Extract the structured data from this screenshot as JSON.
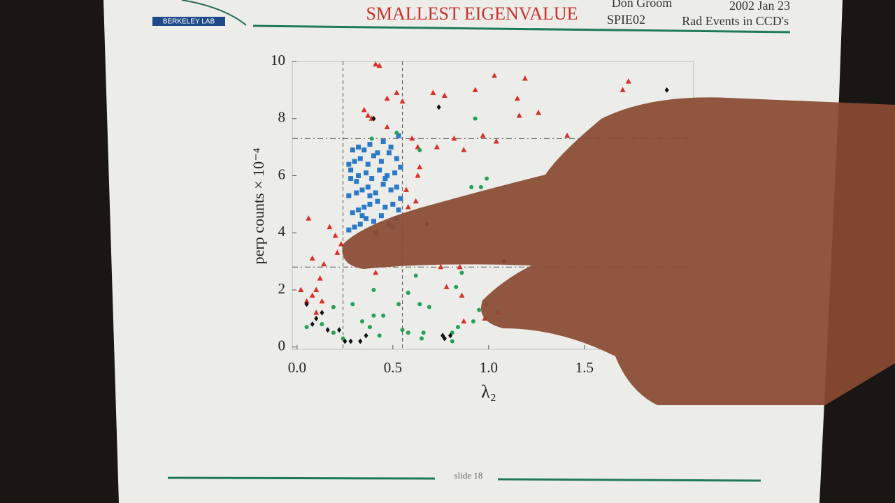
{
  "slide": {
    "logo": "BERKELEY LAB",
    "heading": "SMALLEST EIGENVALUE",
    "author": "Don Groom",
    "date": "2002 Jan 23",
    "venue": "SPIE02",
    "topic": "Rad Events in CCD's",
    "footer": "slide 18"
  },
  "chart_data": {
    "type": "scatter",
    "x_label": "λ₂",
    "y_label": "perp counts × 10⁻⁴",
    "xlim": [
      -0.025,
      2.07
    ],
    "ylim": [
      -0.08,
      10
    ],
    "xticks": [
      {
        "value": 0,
        "label": "0.0"
      },
      0.5,
      {
        "value": 1,
        "label": "1.0"
      },
      1.5
    ],
    "yticks": [
      0,
      2,
      4,
      6,
      8,
      10
    ],
    "x_cuts": [
      0.24,
      0.55
    ],
    "y_cuts": [
      7.3,
      2.8
    ],
    "series": [
      {
        "marker": "triangle",
        "color": "#d8302a",
        "x": [
          0.41,
          0.43,
          0.52,
          0.47,
          0.55,
          0.71,
          0.77,
          0.93,
          1.03,
          1.19,
          1.15,
          1.26,
          1.16,
          1.73,
          1.7,
          0.35,
          0.39,
          0.37,
          0.47,
          0.6,
          0.73,
          0.82,
          0.87,
          0.97,
          1.04,
          1.41,
          0.63,
          0.64,
          0.57,
          0.63,
          0.62,
          0.58,
          0.06,
          0.17,
          0.2,
          0.23,
          0.08,
          0.14,
          0.21,
          0.41,
          0.75,
          0.85,
          0.78,
          0.86,
          0.05,
          0.08,
          0.1,
          0.12,
          0.13,
          0.1,
          0.02,
          0.87,
          0.98,
          1.05
        ],
        "y": [
          9.9,
          9.85,
          8.9,
          8.7,
          8.6,
          8.9,
          8.8,
          9.0,
          9.5,
          9.4,
          8.7,
          8.2,
          8.1,
          9.3,
          9.0,
          8.3,
          8.0,
          8.1,
          7.7,
          7.3,
          7.0,
          7.3,
          6.9,
          7.4,
          7.2,
          7.4,
          7.0,
          6.3,
          5.5,
          6.0,
          5.1,
          4.9,
          4.5,
          4.2,
          3.9,
          3.6,
          3.1,
          2.9,
          3.3,
          2.6,
          2.8,
          2.8,
          2.1,
          1.8,
          1.6,
          1.8,
          2.0,
          2.4,
          1.6,
          1.2,
          2.0,
          0.9,
          1.0,
          1.2
        ]
      },
      {
        "marker": "square",
        "color": "#2a7ac8",
        "x": [
          0.27,
          0.3,
          0.33,
          0.36,
          0.4,
          0.44,
          0.48,
          0.52,
          0.53,
          0.29,
          0.32,
          0.35,
          0.38,
          0.42,
          0.46,
          0.5,
          0.54,
          0.27,
          0.31,
          0.34,
          0.37,
          0.41,
          0.45,
          0.49,
          0.52,
          0.28,
          0.32,
          0.36,
          0.39,
          0.43,
          0.47,
          0.51,
          0.54,
          0.27,
          0.3,
          0.33,
          0.37,
          0.4,
          0.44,
          0.48,
          0.52,
          0.29,
          0.32,
          0.35,
          0.38,
          0.42,
          0.45,
          0.49,
          0.53,
          0.28,
          0.31,
          0.34,
          0.38,
          0.41,
          0.46,
          0.5
        ],
        "y": [
          4.1,
          4.2,
          4.3,
          4.5,
          4.4,
          4.6,
          4.3,
          4.5,
          4.8,
          4.7,
          4.8,
          4.9,
          5.0,
          5.1,
          4.9,
          5.0,
          5.2,
          5.3,
          5.4,
          5.5,
          5.6,
          5.4,
          5.7,
          5.5,
          5.6,
          5.9,
          6.0,
          6.1,
          5.9,
          6.2,
          6.0,
          6.1,
          6.3,
          6.4,
          6.5,
          6.6,
          6.4,
          6.7,
          6.5,
          6.8,
          6.6,
          6.9,
          7.0,
          6.9,
          7.1,
          6.8,
          7.2,
          7.0,
          7.4,
          6.2,
          5.8,
          4.6,
          5.3,
          4.0,
          5.9,
          4.2
        ]
      },
      {
        "marker": "circle",
        "color": "#24a05a",
        "x": [
          0.39,
          0.52,
          0.64,
          0.93,
          0.99,
          0.96,
          0.91,
          0.83,
          0.86,
          0.62,
          0.4,
          0.58,
          0.64,
          0.69,
          0.53,
          0.29,
          0.19,
          0.05,
          0.13,
          0.19,
          0.24,
          0.34,
          0.38,
          0.4,
          0.45,
          0.43,
          0.55,
          0.58,
          0.65,
          0.66,
          0.81,
          0.84,
          0.92,
          0.95,
          0.99,
          0.81
        ],
        "y": [
          7.3,
          7.5,
          6.9,
          8.0,
          5.9,
          5.6,
          5.6,
          2.1,
          2.6,
          2.5,
          2.0,
          1.9,
          1.5,
          1.4,
          1.5,
          1.5,
          1.4,
          0.7,
          0.8,
          0.5,
          0.3,
          0.9,
          0.7,
          1.1,
          1.1,
          0.4,
          0.6,
          0.5,
          0.3,
          0.5,
          0.5,
          0.7,
          0.9,
          1.3,
          1.5,
          0.2
        ]
      },
      {
        "marker": "diamond",
        "color": "#111111",
        "x": [
          0.74,
          0.4,
          1.93,
          0.05,
          0.1,
          0.13,
          0.08,
          0.16,
          0.22,
          0.25,
          0.28,
          0.33,
          0.36,
          0.77,
          0.76,
          0.8,
          1.08,
          0.68
        ],
        "y": [
          8.4,
          8.0,
          9.0,
          1.5,
          1.0,
          1.2,
          0.8,
          0.6,
          0.6,
          0.2,
          0.2,
          0.2,
          0.4,
          0.3,
          0.4,
          0.4,
          3.0,
          4.3
        ]
      }
    ]
  }
}
